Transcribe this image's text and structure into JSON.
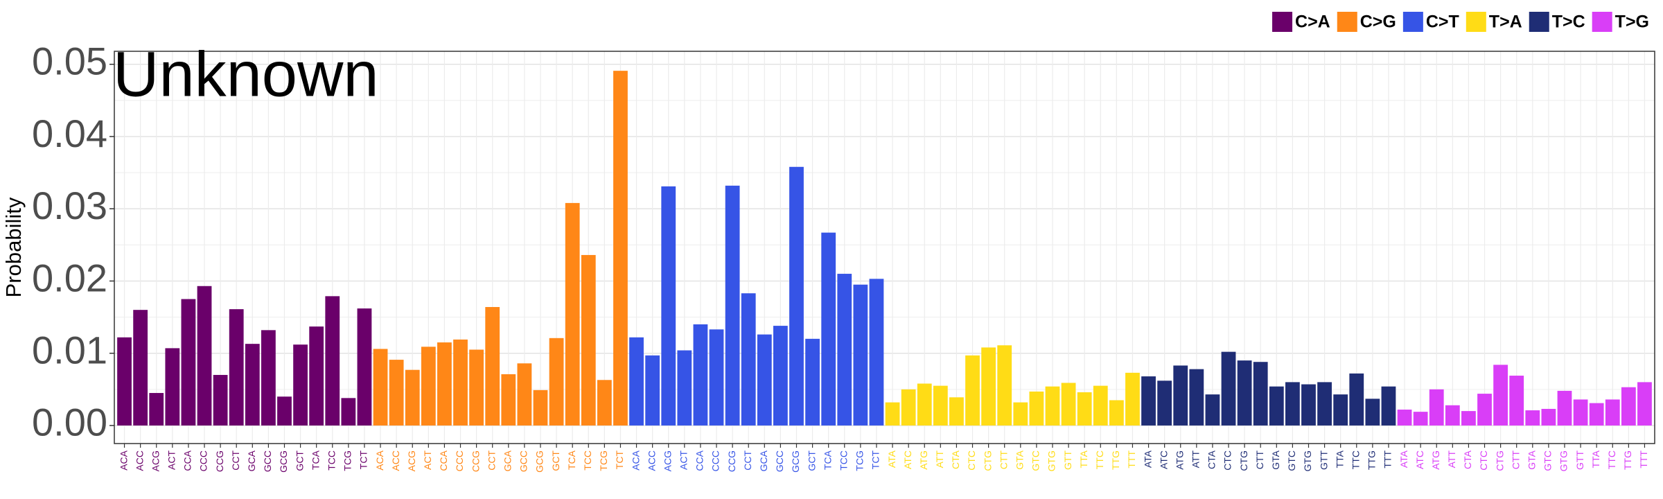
{
  "chart_data": {
    "type": "bar",
    "title": "Unknown",
    "y_label": "Probability",
    "ylim": [
      -0.0025,
      0.0518
    ],
    "yticks": [
      {
        "value": 0,
        "label": "0.00"
      },
      0.01,
      0.02,
      0.03,
      0.04,
      0.05
    ],
    "grid": true,
    "legend": "top-right",
    "series": [
      {
        "name": "C>A",
        "color": "#6a006a",
        "categories": [
          "ACA",
          "ACC",
          "ACG",
          "ACT",
          "CCA",
          "CCC",
          "CCG",
          "CCT",
          "GCA",
          "GCC",
          "GCG",
          "GCT",
          "TCA",
          "TCC",
          "TCG",
          "TCT"
        ],
        "values": [
          0.0122,
          0.016,
          0.0045,
          0.0107,
          0.0175,
          0.0193,
          0.007,
          0.0161,
          0.0113,
          0.0132,
          0.004,
          0.0112,
          0.0137,
          0.0179,
          0.0038,
          0.0162
        ]
      },
      {
        "name": "C>G",
        "color": "#ff8717",
        "categories": [
          "ACA",
          "ACC",
          "ACG",
          "ACT",
          "CCA",
          "CCC",
          "CCG",
          "CCT",
          "GCA",
          "GCC",
          "GCG",
          "GCT",
          "TCA",
          "TCC",
          "TCG",
          "TCT"
        ],
        "values": [
          0.0106,
          0.0091,
          0.0077,
          0.0109,
          0.0115,
          0.0119,
          0.0105,
          0.0164,
          0.0071,
          0.0086,
          0.0049,
          0.0121,
          0.0308,
          0.0236,
          0.0063,
          0.0491
        ]
      },
      {
        "name": "C>T",
        "color": "#3654e6",
        "categories": [
          "ACA",
          "ACC",
          "ACG",
          "ACT",
          "CCA",
          "CCC",
          "CCG",
          "CCT",
          "GCA",
          "GCC",
          "GCG",
          "GCT",
          "TCA",
          "TCC",
          "TCG",
          "TCT"
        ],
        "values": [
          0.0122,
          0.0097,
          0.0331,
          0.0104,
          0.014,
          0.0133,
          0.0332,
          0.0183,
          0.0126,
          0.0138,
          0.0358,
          0.012,
          0.0267,
          0.021,
          0.0195,
          0.0203
        ]
      },
      {
        "name": "T>A",
        "color": "#ffdc16",
        "categories": [
          "ATA",
          "ATC",
          "ATG",
          "ATT",
          "CTA",
          "CTC",
          "CTG",
          "CTT",
          "GTA",
          "GTC",
          "GTG",
          "GTT",
          "TTA",
          "TTC",
          "TTG",
          "TTT"
        ],
        "values": [
          0.0032,
          0.005,
          0.0058,
          0.0055,
          0.0039,
          0.0097,
          0.0108,
          0.0111,
          0.0032,
          0.0047,
          0.0054,
          0.0059,
          0.0046,
          0.0055,
          0.0035,
          0.0073
        ]
      },
      {
        "name": "T>C",
        "color": "#1f2d75",
        "categories": [
          "ATA",
          "ATC",
          "ATG",
          "ATT",
          "CTA",
          "CTC",
          "CTG",
          "CTT",
          "GTA",
          "GTC",
          "GTG",
          "GTT",
          "TTA",
          "TTC",
          "TTG",
          "TTT"
        ],
        "values": [
          0.0068,
          0.0062,
          0.0083,
          0.0078,
          0.0043,
          0.0102,
          0.009,
          0.0088,
          0.0054,
          0.006,
          0.0057,
          0.006,
          0.0043,
          0.0072,
          0.0037,
          0.0054
        ]
      },
      {
        "name": "T>G",
        "color": "#d93ef7",
        "categories": [
          "ATA",
          "ATC",
          "ATG",
          "ATT",
          "CTA",
          "CTC",
          "CTG",
          "CTT",
          "GTA",
          "GTC",
          "GTG",
          "GTT",
          "TTA",
          "TTC",
          "TTG",
          "TTT"
        ],
        "values": [
          0.0022,
          0.0019,
          0.005,
          0.0028,
          0.002,
          0.0044,
          0.0084,
          0.0069,
          0.0021,
          0.0023,
          0.0048,
          0.0036,
          0.0031,
          0.0036,
          0.0053,
          0.006
        ]
      }
    ]
  }
}
